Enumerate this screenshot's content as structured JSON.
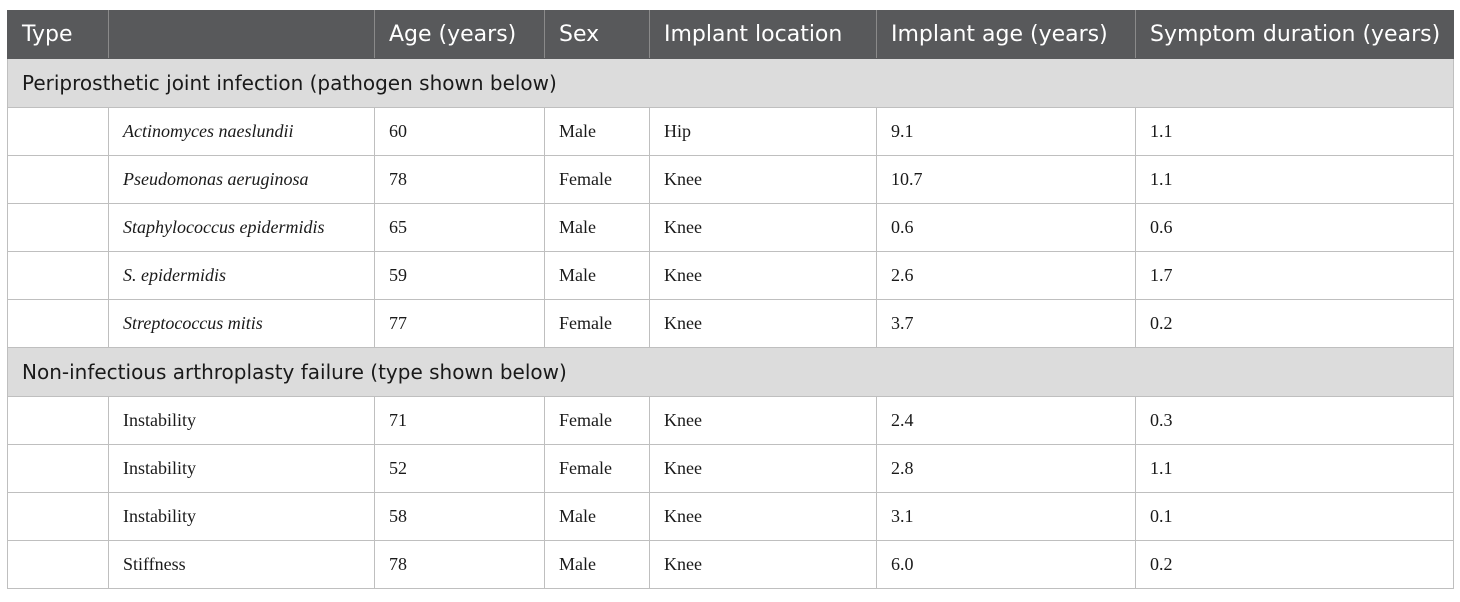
{
  "headers": [
    "Type",
    "",
    "Age (years)",
    "Sex",
    "Implant location",
    "Implant age (years)",
    "Symptom duration (years)"
  ],
  "sections": [
    {
      "title": "Periprosthetic joint infection (pathogen shown below)",
      "italic": true,
      "rows": [
        {
          "name": "Actinomyces naeslundii",
          "age": "60",
          "sex": "Male",
          "location": "Hip",
          "implant_age": "9.1",
          "duration": "1.1"
        },
        {
          "name": "Pseudomonas aeruginosa",
          "age": "78",
          "sex": "Female",
          "location": "Knee",
          "implant_age": "10.7",
          "duration": "1.1"
        },
        {
          "name": "Staphylococcus epidermidis",
          "age": "65",
          "sex": "Male",
          "location": "Knee",
          "implant_age": "0.6",
          "duration": "0.6"
        },
        {
          "name": "S. epidermidis",
          "age": "59",
          "sex": "Male",
          "location": "Knee",
          "implant_age": "2.6",
          "duration": "1.7"
        },
        {
          "name": "Streptococcus mitis",
          "age": "77",
          "sex": "Female",
          "location": "Knee",
          "implant_age": "3.7",
          "duration": "0.2"
        }
      ]
    },
    {
      "title": "Non-infectious arthroplasty failure (type shown below)",
      "italic": false,
      "rows": [
        {
          "name": "Instability",
          "age": "71",
          "sex": "Female",
          "location": "Knee",
          "implant_age": "2.4",
          "duration": "0.3"
        },
        {
          "name": "Instability",
          "age": "52",
          "sex": "Female",
          "location": "Knee",
          "implant_age": "2.8",
          "duration": "1.1"
        },
        {
          "name": "Instability",
          "age": "58",
          "sex": "Male",
          "location": "Knee",
          "implant_age": "3.1",
          "duration": "0.1"
        },
        {
          "name": "Stiffness",
          "age": "78",
          "sex": "Male",
          "location": "Knee",
          "implant_age": "6.0",
          "duration": "0.2"
        }
      ]
    }
  ]
}
